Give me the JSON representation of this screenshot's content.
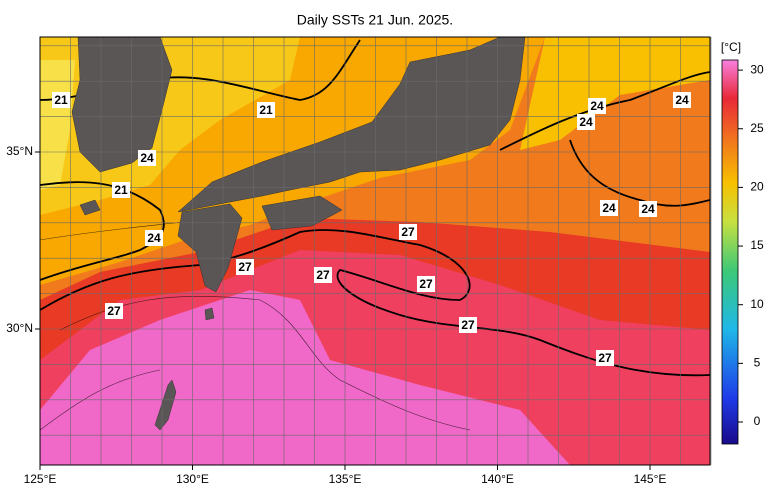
{
  "title": "Daily SSTs 21 Jun. 2025.",
  "longitude_labels": [
    "125°E",
    "130°E",
    "135°E",
    "140°E",
    "145°E"
  ],
  "latitude_labels": [
    "35°N",
    "30°N"
  ],
  "colorbar": {
    "unit": "[°C]",
    "ticks": [
      0,
      5,
      10,
      15,
      20,
      25,
      30
    ]
  },
  "contour_labels": [
    21,
    21,
    21,
    24,
    24,
    24,
    24,
    24,
    24,
    24,
    27,
    27,
    27,
    27,
    27,
    27,
    27
  ]
}
